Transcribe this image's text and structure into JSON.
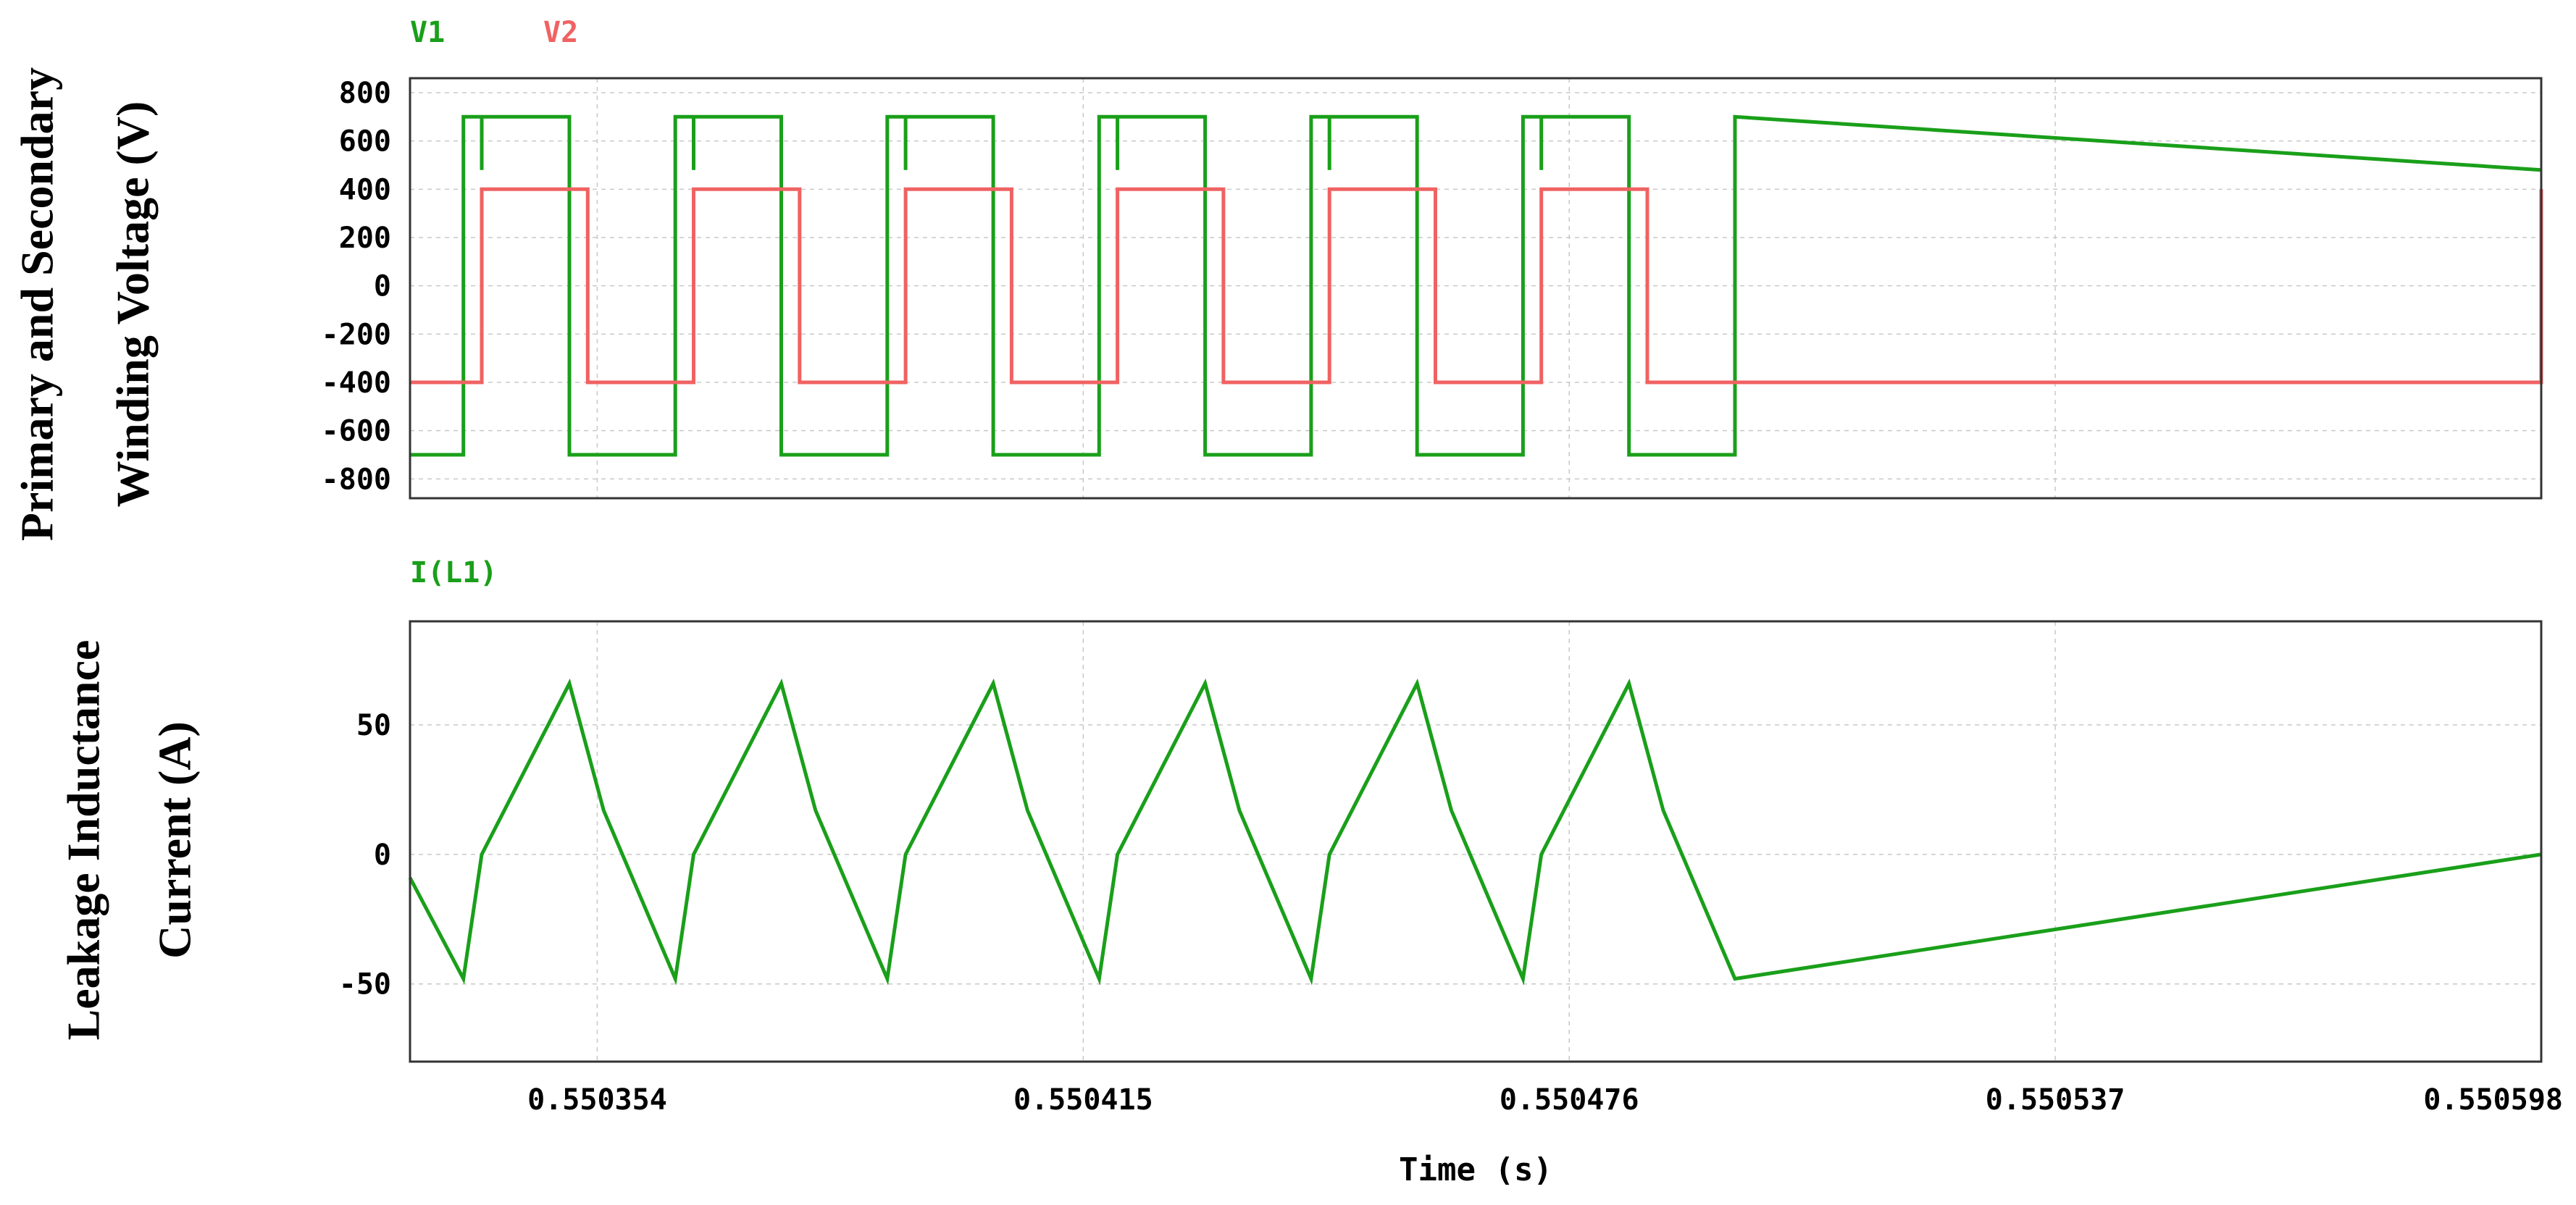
{
  "chart_data": [
    {
      "type": "line",
      "title": "",
      "ylabel_lines": [
        "Primary and Secondary",
        "Winding Voltage (V)"
      ],
      "xlabel": "",
      "yticks": [
        800,
        600,
        400,
        200,
        0,
        -200,
        -400,
        -600,
        -800
      ],
      "ylim": [
        -880,
        860
      ],
      "xlim": [
        0.5503305,
        0.550598
      ],
      "grid": true,
      "legend_placement": "top-left",
      "series": [
        {
          "name": "V1",
          "color": "#1a9f1a",
          "x": [
            0.5503305,
            0.5503372,
            0.5503372,
            0.5503395,
            0.5503395,
            0.5503395,
            0.5503505,
            0.5503505,
            0.5503638,
            0.5503638,
            0.5503661,
            0.5503661,
            0.5503661,
            0.5503771,
            0.5503771,
            0.5503904,
            0.5503904,
            0.5503927,
            0.5503927,
            0.5503927,
            0.5504037,
            0.5504037,
            0.550417,
            0.550417,
            0.5504193,
            0.5504193,
            0.5504193,
            0.5504303,
            0.5504303,
            0.5504436,
            0.5504436,
            0.5504459,
            0.5504459,
            0.5504459,
            0.5504569,
            0.5504569,
            0.5504702,
            0.5504702,
            0.5504725,
            0.5504725,
            0.5504725,
            0.5504835,
            0.5504835,
            0.5504968,
            0.5504968,
            0.550598
          ],
          "y": [
            -700,
            -700,
            700,
            700,
            480,
            700,
            700,
            -700,
            -700,
            700,
            700,
            480,
            700,
            700,
            -700,
            -700,
            700,
            700,
            480,
            700,
            700,
            -700,
            -700,
            700,
            700,
            480,
            700,
            700,
            -700,
            -700,
            700,
            700,
            480,
            700,
            700,
            -700,
            -700,
            700,
            700,
            480,
            700,
            700,
            -700,
            -700,
            700,
            480
          ]
        },
        {
          "name": "V2",
          "color": "#f06262",
          "x": [
            0.5503305,
            0.5503395,
            0.5503395,
            0.5503528,
            0.5503528,
            0.5503661,
            0.5503661,
            0.5503794,
            0.5503794,
            0.5503927,
            0.5503927,
            0.550406,
            0.550406,
            0.5504193,
            0.5504193,
            0.5504326,
            0.5504326,
            0.5504459,
            0.5504459,
            0.5504592,
            0.5504592,
            0.5504725,
            0.5504725,
            0.5504858,
            0.5504858,
            0.550598,
            0.550598
          ],
          "y": [
            -400,
            -400,
            400,
            400,
            -400,
            -400,
            400,
            400,
            -400,
            -400,
            400,
            400,
            -400,
            -400,
            400,
            400,
            -400,
            -400,
            400,
            400,
            -400,
            -400,
            400,
            400,
            -400,
            -400,
            400
          ]
        }
      ]
    },
    {
      "type": "line",
      "title": "",
      "ylabel_lines": [
        "Leakage Inductance",
        "Current (A)"
      ],
      "xlabel": "Time (s)",
      "yticks": [
        50,
        0,
        -50
      ],
      "xticks": [
        "0.550354",
        "0.550415",
        "0.550476",
        "0.550537",
        "0.550598"
      ],
      "xtick_values": [
        0.550354,
        0.550415,
        0.550476,
        0.550537,
        0.550598
      ],
      "ylim": [
        -80,
        90
      ],
      "xlim": [
        0.5503305,
        0.550598
      ],
      "grid": true,
      "legend_placement": "top-left",
      "series": [
        {
          "name": "I(L1)",
          "color": "#1a9f1a",
          "x": [
            0.5503305,
            0.5503372,
            0.5503395,
            0.5503505,
            0.5503548,
            0.5503638,
            0.5503661,
            0.5503771,
            0.5503814,
            0.5503904,
            0.5503927,
            0.5504037,
            0.550408,
            0.550417,
            0.5504193,
            0.5504303,
            0.5504346,
            0.5504436,
            0.5504459,
            0.5504569,
            0.5504612,
            0.5504702,
            0.5504725,
            0.5504835,
            0.5504878,
            0.5504968,
            0.550598
          ],
          "y": [
            -9,
            -48,
            0,
            66,
            17,
            -48,
            0,
            66,
            17,
            -48,
            0,
            66,
            17,
            -48,
            0,
            66,
            17,
            -48,
            0,
            66,
            17,
            -48,
            0,
            66,
            17,
            -48,
            0
          ]
        }
      ]
    }
  ]
}
